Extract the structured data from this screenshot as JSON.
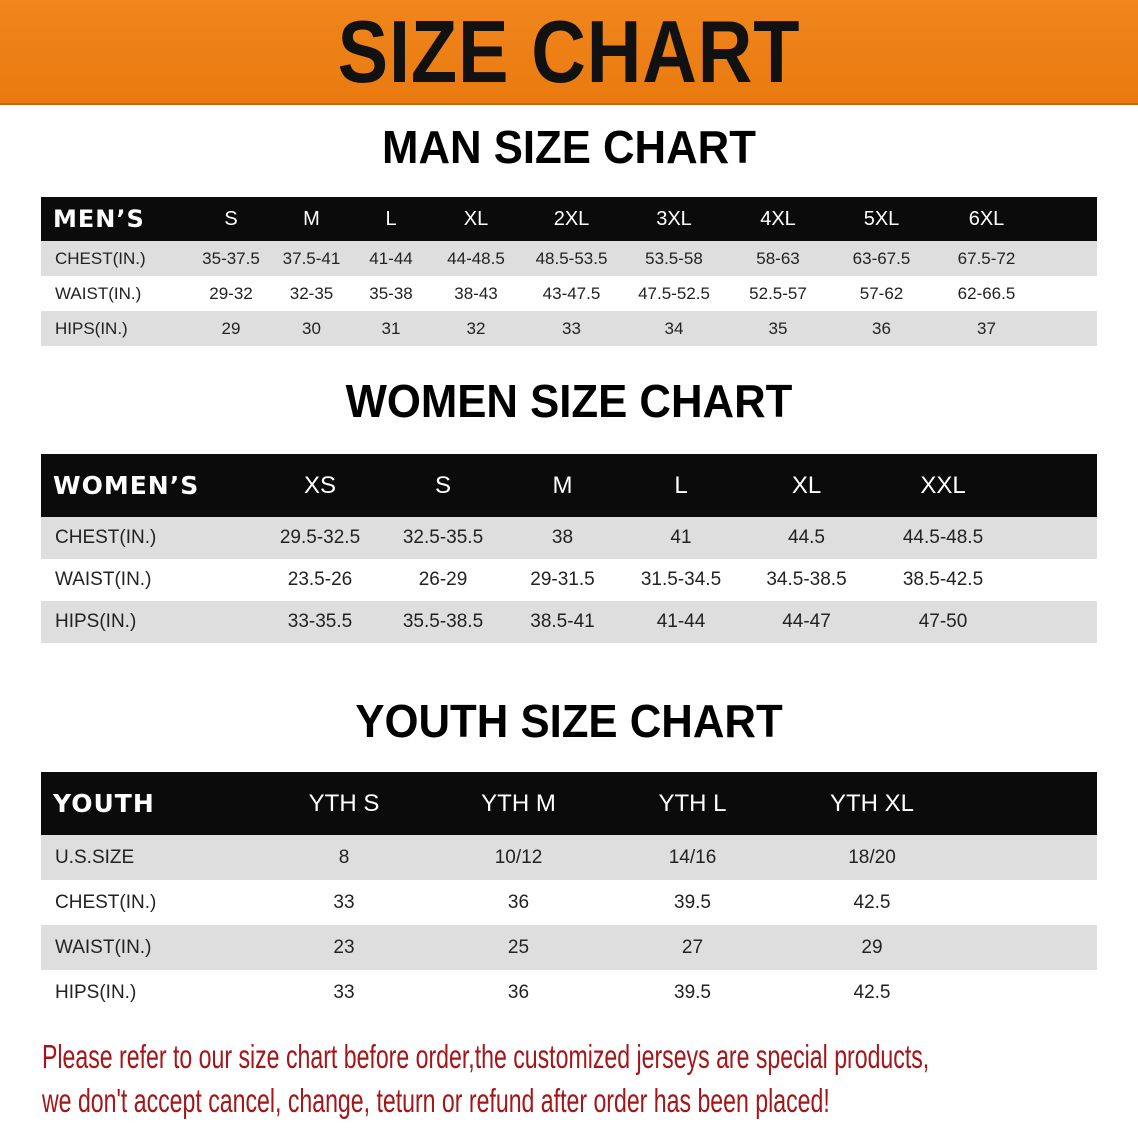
{
  "banner": {
    "title": "SIZE CHART",
    "color": "#ee7f16"
  },
  "men": {
    "title": "MAN SIZE CHART",
    "header": [
      "MEN’S",
      "S",
      "M",
      "L",
      "XL",
      "2XL",
      "3XL",
      "4XL",
      "5XL",
      "6XL"
    ],
    "rows": [
      [
        "CHEST(IN.)",
        "35-37.5",
        "37.5-41",
        "41-44",
        "44-48.5",
        "48.5-53.5",
        "53.5-58",
        "58-63",
        "63-67.5",
        "67.5-72"
      ],
      [
        "WAIST(IN.)",
        "29-32",
        "32-35",
        "35-38",
        "38-43",
        "43-47.5",
        "47.5-52.5",
        "52.5-57",
        "57-62",
        "62-66.5"
      ],
      [
        "HIPS(IN.)",
        "29",
        "30",
        "31",
        "32",
        "33",
        "34",
        "35",
        "36",
        "37"
      ]
    ]
  },
  "women": {
    "title": "WOMEN SIZE CHART",
    "header": [
      "WOMEN’S",
      "XS",
      "S",
      "M",
      "L",
      "XL",
      "XXL"
    ],
    "rows": [
      [
        "CHEST(IN.)",
        "29.5-32.5",
        "32.5-35.5",
        "38",
        "41",
        "44.5",
        "44.5-48.5"
      ],
      [
        "WAIST(IN.)",
        "23.5-26",
        "26-29",
        "29-31.5",
        "31.5-34.5",
        "34.5-38.5",
        "38.5-42.5"
      ],
      [
        "HIPS(IN.)",
        "33-35.5",
        "35.5-38.5",
        "38.5-41",
        "41-44",
        "44-47",
        "47-50"
      ]
    ]
  },
  "youth": {
    "title": "YOUTH SIZE CHART",
    "header": [
      "YOUTH",
      "YTH S",
      "YTH M",
      "YTH L",
      "YTH XL"
    ],
    "rows": [
      [
        "U.S.SIZE",
        "8",
        "10/12",
        "14/16",
        "18/20"
      ],
      [
        "CHEST(IN.)",
        "33",
        "36",
        "39.5",
        "42.5"
      ],
      [
        "WAIST(IN.)",
        "23",
        "25",
        "27",
        "29"
      ],
      [
        "HIPS(IN.)",
        "33",
        "36",
        "39.5",
        "42.5"
      ]
    ]
  },
  "note": {
    "line1": "Please refer to our size chart before order,the customized jerseys are special products,",
    "line2": "we don't accept cancel, change, teturn or refund after order has been placed!",
    "color": "#a3161a"
  }
}
